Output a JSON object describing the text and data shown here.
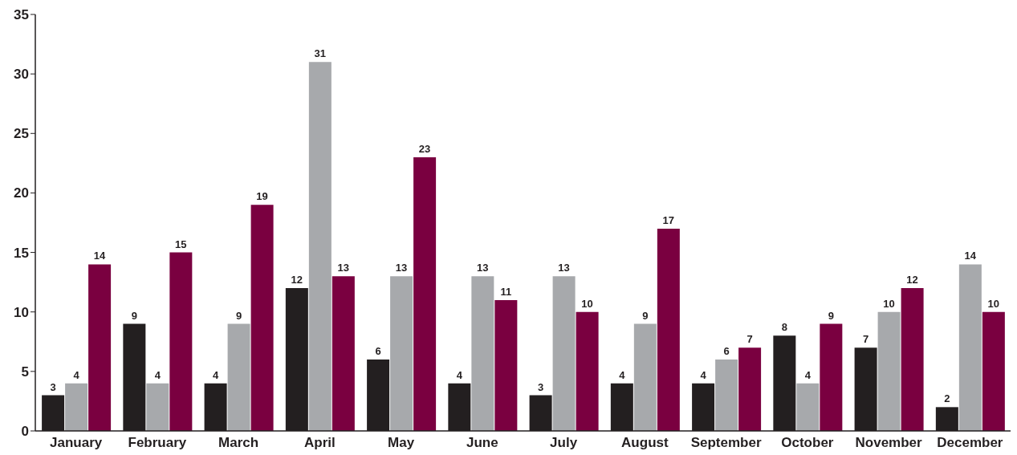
{
  "chart_data": {
    "type": "bar",
    "categories": [
      "January",
      "February",
      "March",
      "April",
      "May",
      "June",
      "July",
      "August",
      "September",
      "October",
      "November",
      "December"
    ],
    "series": [
      {
        "color": "#231f20",
        "values": [
          3,
          9,
          4,
          12,
          6,
          4,
          3,
          4,
          4,
          8,
          7,
          2
        ]
      },
      {
        "color": "#a7a9ac",
        "values": [
          4,
          4,
          9,
          31,
          13,
          13,
          13,
          9,
          6,
          4,
          10,
          14
        ]
      },
      {
        "color": "#7a0040",
        "values": [
          14,
          15,
          19,
          13,
          23,
          11,
          10,
          17,
          7,
          9,
          12,
          10
        ]
      }
    ],
    "ylim": [
      0,
      35
    ],
    "yticks": [
      0,
      5,
      10,
      15,
      20,
      25,
      30,
      35
    ],
    "grid": false,
    "legend": false,
    "data_labels": true
  }
}
